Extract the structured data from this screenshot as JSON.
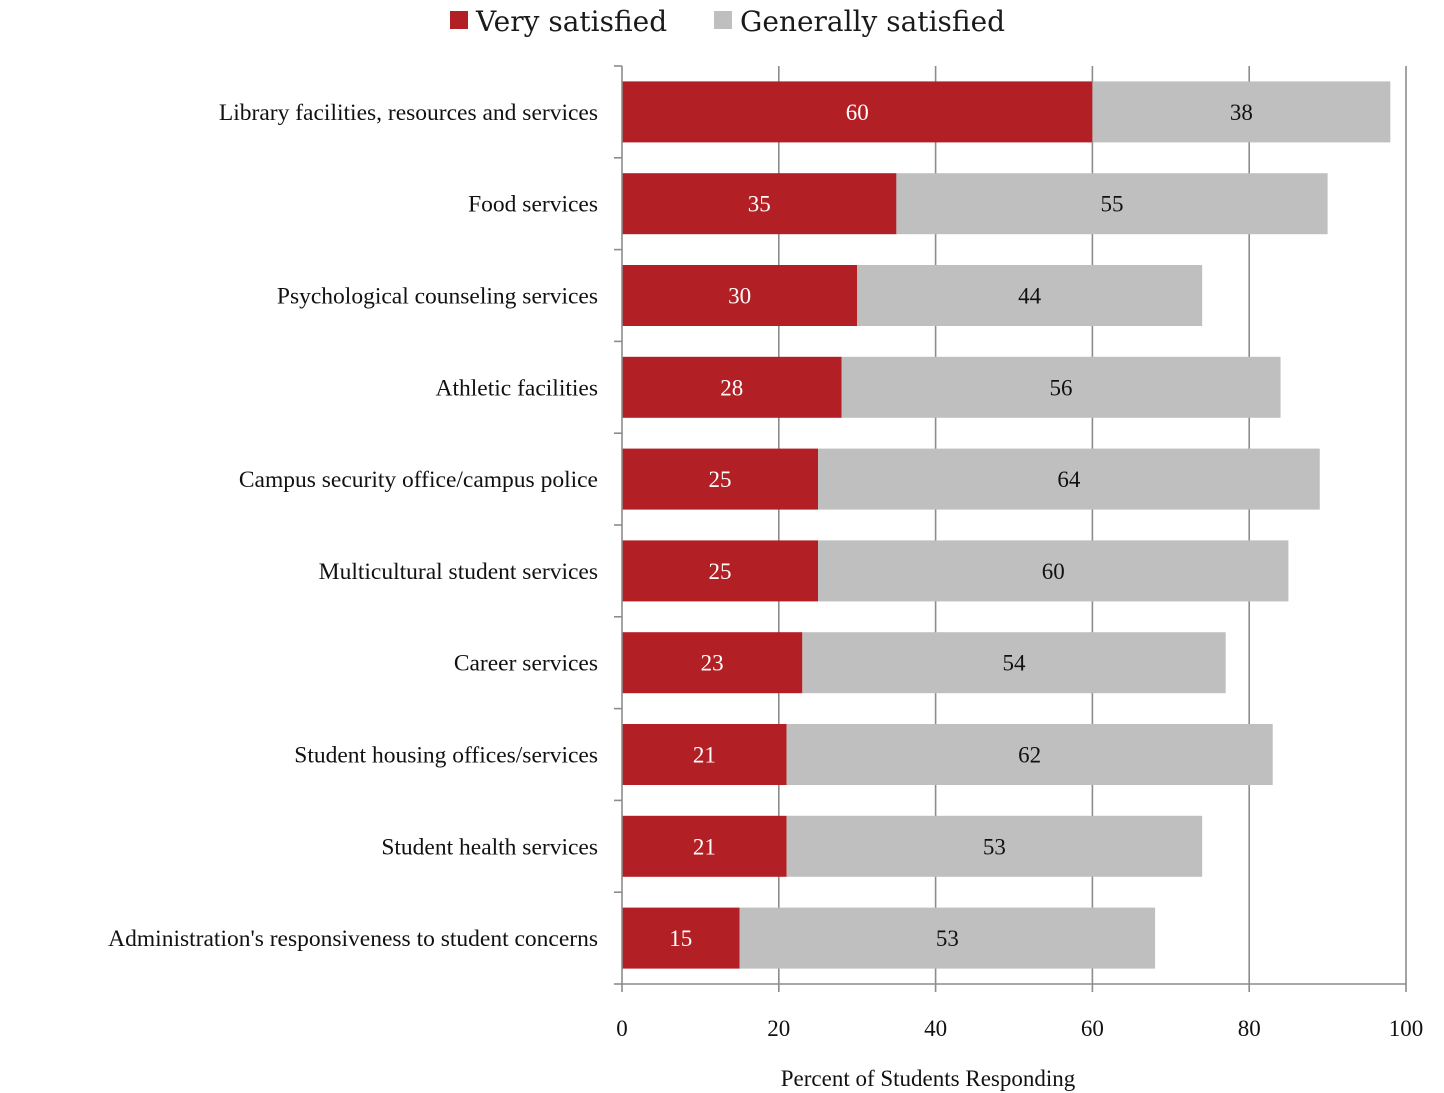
{
  "chart_data": {
    "type": "bar",
    "orientation": "horizontal",
    "stacked": true,
    "categories": [
      "Library facilities, resources and services",
      "Food services",
      "Psychological counseling services",
      "Athletic facilities",
      "Campus security office/campus police",
      "Multicultural student services",
      "Career services",
      "Student housing offices/services",
      "Student health services",
      "Administration's responsiveness to student concerns"
    ],
    "series": [
      {
        "name": "Very satisfied",
        "color": "#b21f24",
        "label_color": "#ffffff",
        "values": [
          60,
          35,
          30,
          28,
          25,
          25,
          23,
          21,
          21,
          15
        ],
        "data_labels": [
          "60",
          "35",
          "30",
          "28",
          "25",
          "25",
          "23",
          "21",
          "21",
          "15"
        ]
      },
      {
        "name": "Generally satisfied",
        "color": "#bfbfbf",
        "label_color": "#111111",
        "values": [
          38,
          55,
          44,
          56,
          64,
          60,
          54,
          62,
          53,
          53
        ],
        "data_labels": [
          "38",
          "55",
          "44",
          "56",
          "64",
          "60",
          "54",
          "62",
          "53",
          "53"
        ]
      }
    ],
    "xlabel": "Percent of Students Responding",
    "xlim": [
      0,
      100
    ],
    "xticks": [
      0,
      20,
      40,
      60,
      80,
      100
    ],
    "xtick_labels": [
      "0",
      "20",
      "40",
      "60",
      "80",
      "100"
    ],
    "grid": "vertical",
    "legend": "top-center"
  }
}
